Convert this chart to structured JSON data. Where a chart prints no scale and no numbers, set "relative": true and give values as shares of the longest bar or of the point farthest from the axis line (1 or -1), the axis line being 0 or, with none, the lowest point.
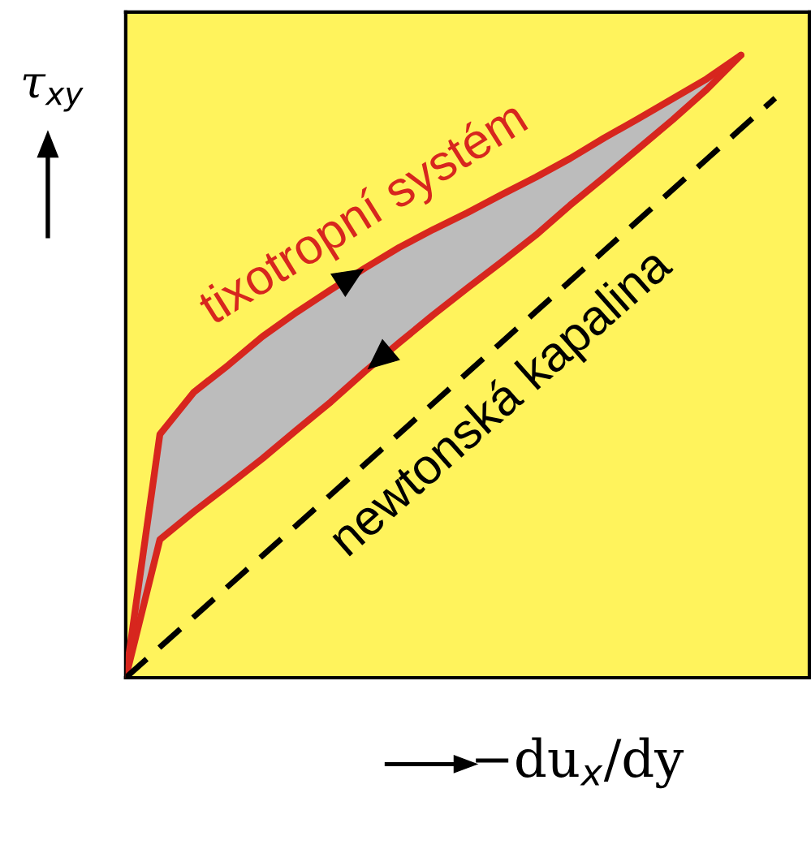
{
  "chart_data": {
    "type": "line",
    "relative": true,
    "xlabel": "−du$_{x}$/dy",
    "ylabel": "τ$_{xy}$",
    "categories": [
      null,
      null,
      null,
      null,
      null,
      null,
      null,
      null,
      null,
      null,
      null,
      null,
      null,
      null,
      null,
      null,
      null,
      null,
      null,
      null,
      null
    ],
    "series": [
      {
        "name": "tixotropní systém",
        "color": "#d7261e",
        "line_style": "solid",
        "values": [
          0,
          0.391,
          0.459,
          0.502,
          0.548,
          0.587,
          0.623,
          0.658,
          0.691,
          0.72,
          0.747,
          0.776,
          0.804,
          0.834,
          0.867,
          0.898,
          0.93,
          0.962,
          1.0,
          null,
          null
        ],
        "lower": [
          0,
          0.222,
          0.267,
          0.309,
          0.352,
          0.398,
          0.443,
          0.492,
          0.538,
          0.583,
          0.626,
          0.668,
          0.711,
          0.759,
          0.804,
          0.85,
          0.896,
          0.945,
          1.0,
          null,
          null
        ],
        "upper": [
          0,
          0.391,
          0.459,
          0.502,
          0.548,
          0.587,
          0.623,
          0.658,
          0.691,
          0.72,
          0.747,
          0.776,
          0.804,
          0.834,
          0.867,
          0.898,
          0.93,
          0.962,
          1.0,
          null,
          null
        ]
      },
      {
        "name": "newtonská kapalina",
        "color": "#000000",
        "line_style": "dashed",
        "values": [
          0,
          0.049,
          0.098,
          0.147,
          0.196,
          0.245,
          0.294,
          0.343,
          0.392,
          0.441,
          0.49,
          0.539,
          0.588,
          0.637,
          0.686,
          0.735,
          0.784,
          0.833,
          0.882,
          0.931,
          null
        ]
      }
    ],
    "legend": false
  }
}
